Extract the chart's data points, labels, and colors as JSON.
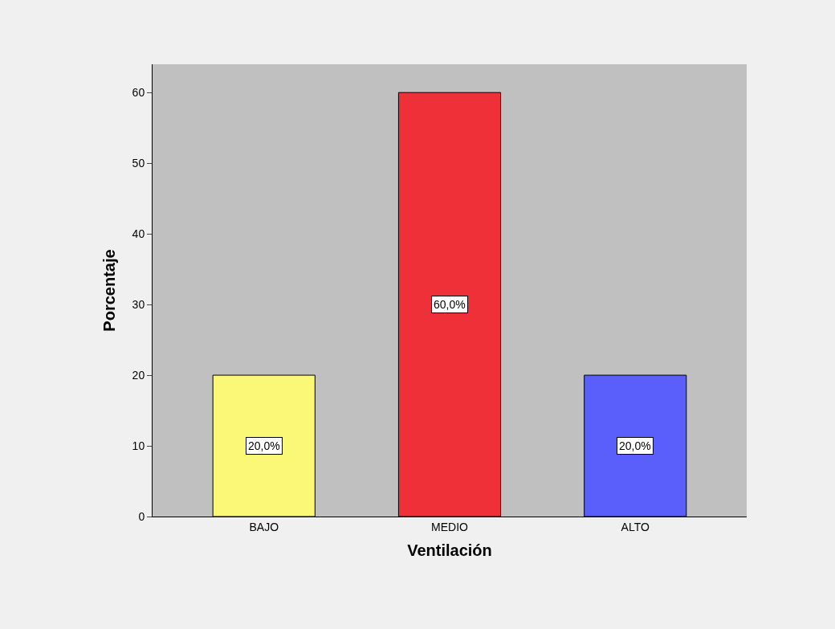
{
  "chart_data": {
    "type": "bar",
    "xlabel": "Ventilación",
    "ylabel": "Porcentaje",
    "categories": [
      "BAJO",
      "MEDIO",
      "ALTO"
    ],
    "values": [
      20,
      60,
      20
    ],
    "colors": [
      "#fbf877",
      "#f03038",
      "#5a5ffc"
    ],
    "value_labels": [
      "20,0%",
      "60,0%",
      "20,0%"
    ],
    "ylim": [
      0,
      64
    ],
    "yticks": [
      0,
      10,
      20,
      30,
      40,
      50,
      60
    ],
    "grid": false
  }
}
